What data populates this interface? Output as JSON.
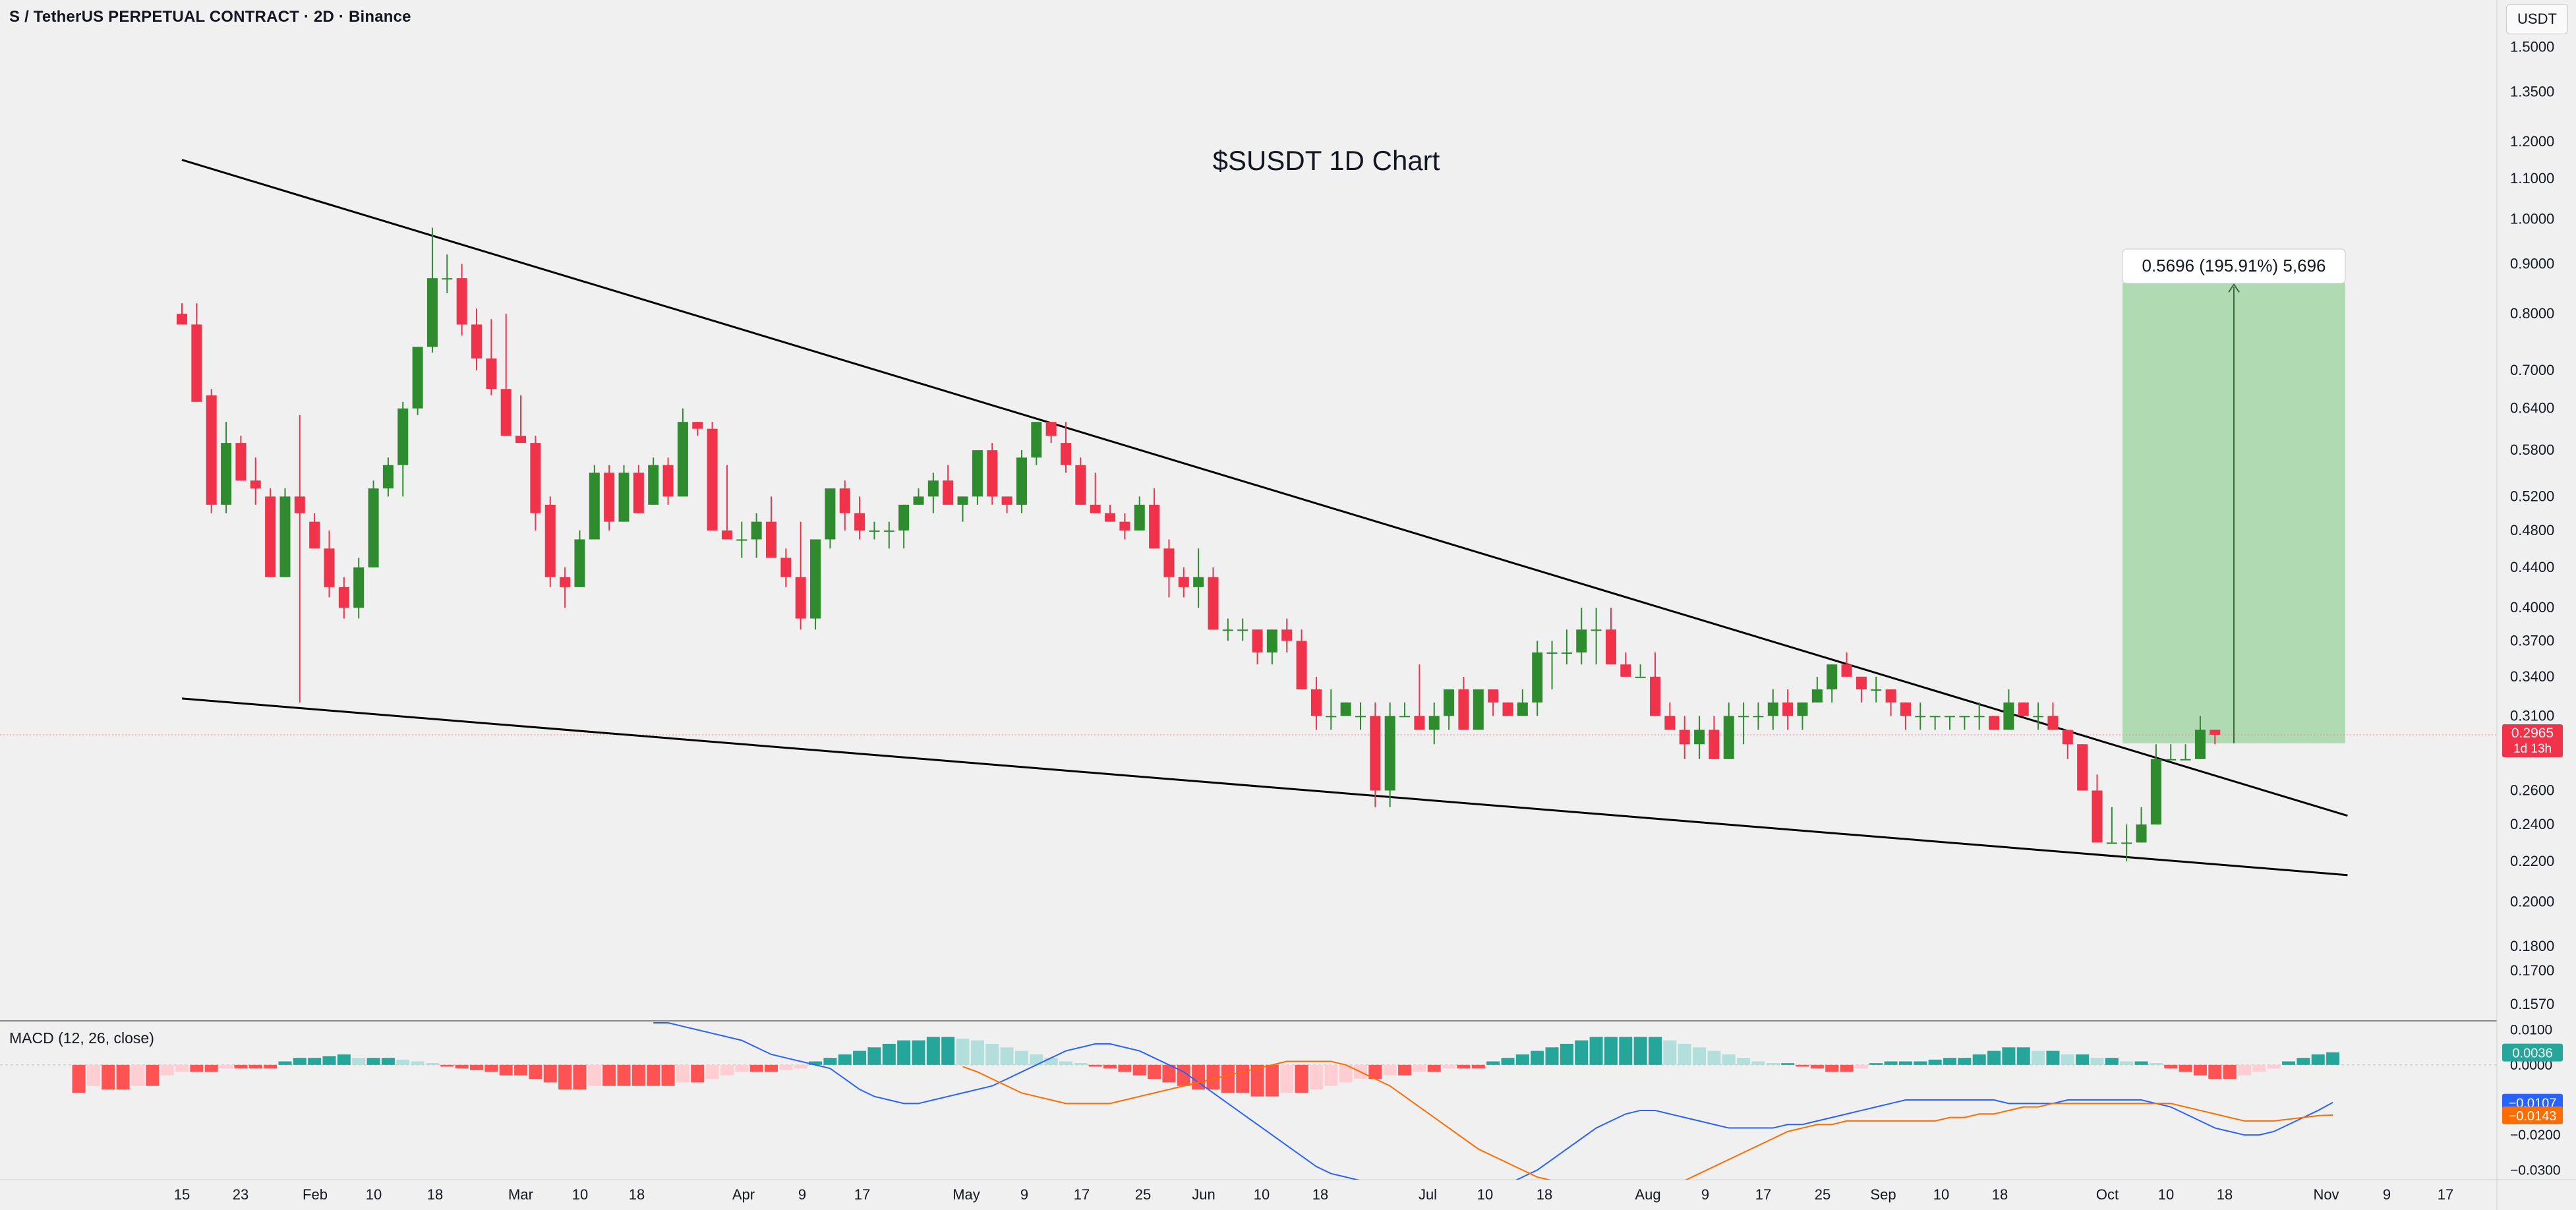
{
  "header": {
    "symbol_title": "S / TetherUS PERPETUAL CONTRACT · 2D · Binance",
    "currency": "USDT"
  },
  "chart_title": "$SUSDT 1D Chart",
  "chart_data": {
    "type": "candlestick",
    "ylim": [
      0.152,
      1.6
    ],
    "price_ticks": [
      "1.5000",
      "1.3500",
      "1.2000",
      "1.1000",
      "1.0000",
      "0.9000",
      "0.8000",
      "0.7000",
      "0.6400",
      "0.5800",
      "0.5200",
      "0.4800",
      "0.4400",
      "0.4000",
      "0.3700",
      "0.3400",
      "0.3100",
      "0.2600",
      "0.2400",
      "0.2200",
      "0.2000",
      "0.1800",
      "0.1700",
      "0.1570"
    ],
    "time_ticks": [
      "15",
      "23",
      "Feb",
      "10",
      "18",
      "Mar",
      "10",
      "18",
      "Apr",
      "9",
      "17",
      "May",
      "9",
      "17",
      "25",
      "Jun",
      "10",
      "18",
      "Jul",
      "10",
      "18",
      "Aug",
      "9",
      "17",
      "25",
      "Sep",
      "10",
      "18",
      "Oct",
      "10",
      "18",
      "Nov",
      "9",
      "17"
    ],
    "last_price": "0.2965",
    "countdown": "1d 13h",
    "candles": [
      [
        0.8,
        0.82,
        0.78,
        0.78
      ],
      [
        0.78,
        0.82,
        0.65,
        0.65
      ],
      [
        0.66,
        0.67,
        0.5,
        0.51
      ],
      [
        0.51,
        0.62,
        0.5,
        0.59
      ],
      [
        0.59,
        0.6,
        0.54,
        0.54
      ],
      [
        0.54,
        0.57,
        0.51,
        0.53
      ],
      [
        0.52,
        0.53,
        0.43,
        0.43
      ],
      [
        0.43,
        0.53,
        0.43,
        0.52
      ],
      [
        0.52,
        0.63,
        0.32,
        0.5
      ],
      [
        0.49,
        0.5,
        0.46,
        0.46
      ],
      [
        0.46,
        0.48,
        0.41,
        0.42
      ],
      [
        0.42,
        0.43,
        0.39,
        0.4
      ],
      [
        0.4,
        0.45,
        0.39,
        0.44
      ],
      [
        0.44,
        0.54,
        0.44,
        0.53
      ],
      [
        0.53,
        0.57,
        0.52,
        0.56
      ],
      [
        0.56,
        0.65,
        0.52,
        0.64
      ],
      [
        0.64,
        0.74,
        0.63,
        0.74
      ],
      [
        0.74,
        0.98,
        0.73,
        0.87
      ],
      [
        0.87,
        0.92,
        0.84,
        0.87
      ],
      [
        0.87,
        0.9,
        0.76,
        0.78
      ],
      [
        0.78,
        0.81,
        0.7,
        0.72
      ],
      [
        0.72,
        0.79,
        0.66,
        0.67
      ],
      [
        0.67,
        0.8,
        0.6,
        0.6
      ],
      [
        0.6,
        0.66,
        0.59,
        0.59
      ],
      [
        0.59,
        0.6,
        0.48,
        0.5
      ],
      [
        0.51,
        0.52,
        0.42,
        0.43
      ],
      [
        0.43,
        0.44,
        0.4,
        0.42
      ],
      [
        0.42,
        0.48,
        0.42,
        0.47
      ],
      [
        0.47,
        0.56,
        0.47,
        0.55
      ],
      [
        0.55,
        0.56,
        0.48,
        0.49
      ],
      [
        0.49,
        0.56,
        0.49,
        0.55
      ],
      [
        0.55,
        0.56,
        0.5,
        0.5
      ],
      [
        0.51,
        0.57,
        0.51,
        0.56
      ],
      [
        0.56,
        0.57,
        0.51,
        0.52
      ],
      [
        0.52,
        0.64,
        0.52,
        0.62
      ],
      [
        0.62,
        0.62,
        0.6,
        0.61
      ],
      [
        0.61,
        0.62,
        0.48,
        0.48
      ],
      [
        0.48,
        0.56,
        0.47,
        0.47
      ],
      [
        0.47,
        0.49,
        0.45,
        0.47
      ],
      [
        0.47,
        0.5,
        0.45,
        0.49
      ],
      [
        0.49,
        0.52,
        0.45,
        0.45
      ],
      [
        0.45,
        0.46,
        0.42,
        0.43
      ],
      [
        0.43,
        0.49,
        0.38,
        0.39
      ],
      [
        0.39,
        0.47,
        0.38,
        0.47
      ],
      [
        0.47,
        0.53,
        0.46,
        0.53
      ],
      [
        0.53,
        0.54,
        0.48,
        0.5
      ],
      [
        0.5,
        0.52,
        0.47,
        0.48
      ],
      [
        0.48,
        0.49,
        0.47,
        0.48
      ],
      [
        0.48,
        0.49,
        0.46,
        0.48
      ],
      [
        0.48,
        0.51,
        0.46,
        0.51
      ],
      [
        0.51,
        0.53,
        0.51,
        0.52
      ],
      [
        0.52,
        0.55,
        0.5,
        0.54
      ],
      [
        0.54,
        0.56,
        0.51,
        0.51
      ],
      [
        0.51,
        0.52,
        0.49,
        0.52
      ],
      [
        0.52,
        0.58,
        0.51,
        0.58
      ],
      [
        0.58,
        0.59,
        0.51,
        0.52
      ],
      [
        0.52,
        0.52,
        0.5,
        0.51
      ],
      [
        0.51,
        0.58,
        0.5,
        0.57
      ],
      [
        0.57,
        0.62,
        0.56,
        0.62
      ],
      [
        0.62,
        0.62,
        0.59,
        0.6
      ],
      [
        0.59,
        0.62,
        0.55,
        0.56
      ],
      [
        0.56,
        0.57,
        0.51,
        0.51
      ],
      [
        0.51,
        0.55,
        0.5,
        0.5
      ],
      [
        0.5,
        0.51,
        0.49,
        0.49
      ],
      [
        0.49,
        0.5,
        0.47,
        0.48
      ],
      [
        0.48,
        0.52,
        0.48,
        0.51
      ],
      [
        0.51,
        0.53,
        0.46,
        0.46
      ],
      [
        0.46,
        0.47,
        0.41,
        0.43
      ],
      [
        0.43,
        0.44,
        0.41,
        0.42
      ],
      [
        0.42,
        0.46,
        0.4,
        0.43
      ],
      [
        0.43,
        0.44,
        0.38,
        0.38
      ],
      [
        0.38,
        0.39,
        0.37,
        0.38
      ],
      [
        0.38,
        0.39,
        0.37,
        0.38
      ],
      [
        0.38,
        0.38,
        0.35,
        0.36
      ],
      [
        0.36,
        0.38,
        0.35,
        0.38
      ],
      [
        0.38,
        0.39,
        0.36,
        0.37
      ],
      [
        0.37,
        0.38,
        0.33,
        0.33
      ],
      [
        0.33,
        0.34,
        0.3,
        0.31
      ],
      [
        0.31,
        0.33,
        0.3,
        0.31
      ],
      [
        0.31,
        0.32,
        0.31,
        0.32
      ],
      [
        0.31,
        0.32,
        0.3,
        0.31
      ],
      [
        0.31,
        0.32,
        0.25,
        0.26
      ],
      [
        0.26,
        0.32,
        0.25,
        0.31
      ],
      [
        0.31,
        0.32,
        0.31,
        0.31
      ],
      [
        0.31,
        0.35,
        0.3,
        0.3
      ],
      [
        0.3,
        0.32,
        0.29,
        0.31
      ],
      [
        0.31,
        0.33,
        0.3,
        0.33
      ],
      [
        0.33,
        0.34,
        0.3,
        0.3
      ],
      [
        0.3,
        0.33,
        0.3,
        0.33
      ],
      [
        0.33,
        0.32,
        0.31,
        0.32
      ],
      [
        0.32,
        0.32,
        0.31,
        0.31
      ],
      [
        0.31,
        0.33,
        0.31,
        0.32
      ],
      [
        0.32,
        0.37,
        0.31,
        0.36
      ],
      [
        0.36,
        0.37,
        0.33,
        0.36
      ],
      [
        0.36,
        0.38,
        0.35,
        0.36
      ],
      [
        0.36,
        0.4,
        0.35,
        0.38
      ],
      [
        0.38,
        0.4,
        0.35,
        0.38
      ],
      [
        0.38,
        0.4,
        0.35,
        0.35
      ],
      [
        0.35,
        0.36,
        0.34,
        0.34
      ],
      [
        0.34,
        0.35,
        0.34,
        0.34
      ],
      [
        0.34,
        0.36,
        0.31,
        0.31
      ],
      [
        0.31,
        0.32,
        0.3,
        0.3
      ],
      [
        0.3,
        0.31,
        0.28,
        0.29
      ],
      [
        0.29,
        0.31,
        0.28,
        0.3
      ],
      [
        0.3,
        0.31,
        0.28,
        0.28
      ],
      [
        0.28,
        0.32,
        0.28,
        0.31
      ],
      [
        0.31,
        0.32,
        0.29,
        0.31
      ],
      [
        0.31,
        0.32,
        0.3,
        0.31
      ],
      [
        0.31,
        0.33,
        0.3,
        0.32
      ],
      [
        0.32,
        0.33,
        0.3,
        0.31
      ],
      [
        0.31,
        0.32,
        0.3,
        0.32
      ],
      [
        0.32,
        0.34,
        0.32,
        0.33
      ],
      [
        0.33,
        0.35,
        0.32,
        0.35
      ],
      [
        0.35,
        0.36,
        0.34,
        0.34
      ],
      [
        0.34,
        0.34,
        0.32,
        0.33
      ],
      [
        0.33,
        0.34,
        0.32,
        0.33
      ],
      [
        0.33,
        0.33,
        0.31,
        0.32
      ],
      [
        0.32,
        0.32,
        0.3,
        0.31
      ],
      [
        0.31,
        0.32,
        0.3,
        0.31
      ],
      [
        0.31,
        0.31,
        0.3,
        0.31
      ],
      [
        0.31,
        0.31,
        0.3,
        0.31
      ],
      [
        0.31,
        0.31,
        0.3,
        0.31
      ],
      [
        0.31,
        0.32,
        0.3,
        0.31
      ],
      [
        0.31,
        0.31,
        0.3,
        0.3
      ],
      [
        0.3,
        0.33,
        0.3,
        0.32
      ],
      [
        0.32,
        0.32,
        0.31,
        0.31
      ],
      [
        0.31,
        0.32,
        0.3,
        0.31
      ],
      [
        0.31,
        0.32,
        0.3,
        0.3
      ],
      [
        0.3,
        0.3,
        0.28,
        0.29
      ],
      [
        0.29,
        0.29,
        0.26,
        0.26
      ],
      [
        0.26,
        0.27,
        0.23,
        0.23
      ],
      [
        0.23,
        0.25,
        0.23,
        0.23
      ],
      [
        0.23,
        0.24,
        0.22,
        0.23
      ],
      [
        0.23,
        0.25,
        0.23,
        0.24
      ],
      [
        0.24,
        0.29,
        0.24,
        0.28
      ],
      [
        0.28,
        0.29,
        0.28,
        0.28
      ],
      [
        0.28,
        0.29,
        0.28,
        0.28
      ],
      [
        0.28,
        0.31,
        0.28,
        0.3
      ],
      [
        0.3,
        0.3,
        0.29,
        0.2965
      ]
    ],
    "trendlines": [
      {
        "name": "upper",
        "from": [
          0,
          1.15
        ],
        "to": [
          147,
          0.245
        ]
      },
      {
        "name": "lower",
        "from": [
          0,
          0.323
        ],
        "to": [
          147,
          0.213
        ]
      }
    ],
    "target": {
      "label": "0.5696 (195.91%) 5,696",
      "entry": 0.2906,
      "target": 0.8602
    },
    "macd": {
      "title": "MACD (12, 26, close)",
      "ylim": [
        -0.032,
        0.012
      ],
      "ticks": [
        "0.0100",
        "0.0000",
        "−0.0200",
        "−0.0300"
      ],
      "histogram_value": "0.0036",
      "macd_value": "−0.0107",
      "signal_value": "−0.0143",
      "histogram": [
        -0.008,
        -0.006,
        -0.007,
        -0.007,
        -0.006,
        -0.006,
        -0.003,
        -0.002,
        -0.002,
        -0.002,
        -0.001,
        -0.001,
        -0.001,
        -0.001,
        0.001,
        0.002,
        0.002,
        0.0025,
        0.003,
        0.002,
        0.002,
        0.002,
        0.0015,
        0.001,
        0.0005,
        -0.0005,
        -0.001,
        -0.0015,
        -0.002,
        -0.003,
        -0.003,
        -0.004,
        -0.005,
        -0.007,
        -0.007,
        -0.006,
        -0.006,
        -0.006,
        -0.006,
        -0.006,
        -0.006,
        -0.005,
        -0.005,
        -0.004,
        -0.003,
        -0.002,
        -0.002,
        -0.002,
        -0.0015,
        -0.001,
        0.001,
        0.002,
        0.003,
        0.004,
        0.005,
        0.006,
        0.007,
        0.007,
        0.008,
        0.008,
        0.0075,
        0.007,
        0.006,
        0.005,
        0.004,
        0.003,
        0.002,
        0.001,
        0.0005,
        -0.0005,
        -0.001,
        -0.002,
        -0.003,
        -0.004,
        -0.005,
        -0.006,
        -0.007,
        -0.007,
        -0.008,
        -0.008,
        -0.009,
        -0.009,
        -0.008,
        -0.008,
        -0.007,
        -0.006,
        -0.005,
        -0.004,
        -0.004,
        -0.003,
        -0.003,
        -0.002,
        -0.002,
        -0.001,
        -0.001,
        -0.001,
        0.001,
        0.002,
        0.003,
        0.004,
        0.005,
        0.006,
        0.007,
        0.008,
        0.008,
        0.008,
        0.008,
        0.008,
        0.007,
        0.006,
        0.005,
        0.004,
        0.003,
        0.002,
        0.001,
        0.0005,
        0.0005,
        -0.0005,
        -0.001,
        -0.002,
        -0.002,
        -0.001,
        0.0005,
        0.001,
        0.001,
        0.001,
        0.0015,
        0.002,
        0.002,
        0.003,
        0.004,
        0.005,
        0.005,
        0.004,
        0.004,
        0.003,
        0.003,
        0.002,
        0.002,
        0.001,
        0.001,
        0.0005,
        -0.001,
        -0.002,
        -0.003,
        -0.004,
        -0.004,
        -0.003,
        -0.002,
        -0.001,
        0.001,
        0.002,
        0.003,
        0.0036
      ],
      "macd_line": [
        0.012,
        0.012,
        0.011,
        0.01,
        0.009,
        0.008,
        0.007,
        0.005,
        0.003,
        0.002,
        0.001,
        0.0,
        -0.001,
        -0.004,
        -0.007,
        -0.009,
        -0.01,
        -0.011,
        -0.011,
        -0.01,
        -0.009,
        -0.008,
        -0.007,
        -0.006,
        -0.004,
        -0.002,
        0.0,
        0.002,
        0.004,
        0.005,
        0.006,
        0.006,
        0.005,
        0.004,
        0.002,
        0.0,
        -0.002,
        -0.005,
        -0.008,
        -0.011,
        -0.014,
        -0.017,
        -0.02,
        -0.023,
        -0.026,
        -0.029,
        -0.031,
        -0.032,
        -0.033,
        -0.034,
        -0.035,
        -0.036,
        -0.036,
        -0.037,
        -0.037,
        -0.037,
        -0.036,
        -0.035,
        -0.034,
        -0.032,
        -0.03,
        -0.027,
        -0.024,
        -0.021,
        -0.018,
        -0.016,
        -0.014,
        -0.013,
        -0.013,
        -0.014,
        -0.015,
        -0.016,
        -0.017,
        -0.018,
        -0.018,
        -0.018,
        -0.018,
        -0.017,
        -0.017,
        -0.016,
        -0.015,
        -0.014,
        -0.013,
        -0.012,
        -0.011,
        -0.01,
        -0.01,
        -0.01,
        -0.01,
        -0.01,
        -0.01,
        -0.01,
        -0.011,
        -0.011,
        -0.011,
        -0.011,
        -0.01,
        -0.01,
        -0.01,
        -0.01,
        -0.01,
        -0.01,
        -0.011,
        -0.012,
        -0.014,
        -0.016,
        -0.018,
        -0.019,
        -0.02,
        -0.02,
        -0.019,
        -0.017,
        -0.015,
        -0.013,
        -0.0107
      ],
      "signal_line": [
        -0.0005,
        -0.002,
        -0.004,
        -0.006,
        -0.008,
        -0.009,
        -0.01,
        -0.011,
        -0.011,
        -0.011,
        -0.011,
        -0.01,
        -0.009,
        -0.008,
        -0.007,
        -0.006,
        -0.005,
        -0.004,
        -0.003,
        -0.002,
        -0.001,
        0.0,
        0.001,
        0.001,
        0.001,
        0.001,
        0.0,
        -0.002,
        -0.004,
        -0.006,
        -0.009,
        -0.012,
        -0.015,
        -0.018,
        -0.021,
        -0.024,
        -0.026,
        -0.028,
        -0.03,
        -0.032,
        -0.033,
        -0.034,
        -0.035,
        -0.036,
        -0.036,
        -0.036,
        -0.036,
        -0.035,
        -0.034,
        -0.033,
        -0.031,
        -0.029,
        -0.027,
        -0.025,
        -0.023,
        -0.021,
        -0.019,
        -0.018,
        -0.017,
        -0.017,
        -0.016,
        -0.016,
        -0.016,
        -0.016,
        -0.016,
        -0.016,
        -0.016,
        -0.015,
        -0.015,
        -0.014,
        -0.014,
        -0.013,
        -0.012,
        -0.012,
        -0.011,
        -0.011,
        -0.011,
        -0.011,
        -0.011,
        -0.011,
        -0.011,
        -0.011,
        -0.011,
        -0.012,
        -0.013,
        -0.014,
        -0.015,
        -0.016,
        -0.016,
        -0.016,
        -0.0155,
        -0.015,
        -0.0145,
        -0.0143
      ]
    }
  },
  "colors": {
    "bull": "#2e8b2e",
    "bear": "#f0334a",
    "macd_line": "#2962ff",
    "signal_line": "#ff6d00",
    "hist_up_strong": "#26a69a",
    "hist_up_weak": "#b2dfdb",
    "hist_down_strong": "#ff5252",
    "hist_down_weak": "#ffcdd2",
    "target_fill": "#a5d6a7"
  }
}
